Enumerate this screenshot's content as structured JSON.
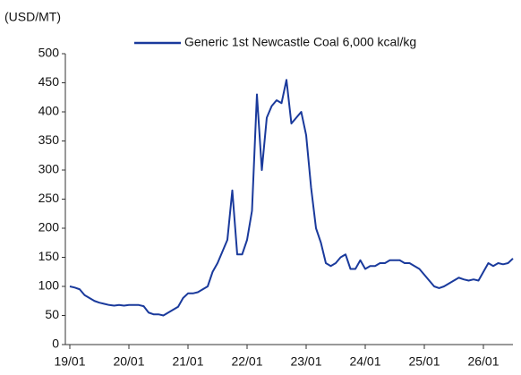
{
  "chart_data": {
    "type": "line",
    "y_label": "(USD/MT)",
    "x": [
      "19/01",
      "19/02",
      "19/03",
      "19/04",
      "19/05",
      "19/06",
      "19/07",
      "19/08",
      "19/09",
      "19/10",
      "19/11",
      "19/12",
      "20/01",
      "20/02",
      "20/03",
      "20/04",
      "20/05",
      "20/06",
      "20/07",
      "20/08",
      "20/09",
      "20/10",
      "20/11",
      "20/12",
      "21/01",
      "21/02",
      "21/03",
      "21/04",
      "21/05",
      "21/06",
      "21/07",
      "21/08",
      "21/09",
      "21/10",
      "21/11",
      "21/12",
      "22/01",
      "22/02",
      "22/03",
      "22/04",
      "22/05",
      "22/06",
      "22/07",
      "22/08",
      "22/09",
      "22/10",
      "22/11",
      "22/12",
      "23/01",
      "23/02",
      "23/03",
      "23/04",
      "23/05",
      "23/06",
      "23/07",
      "23/08",
      "23/09",
      "23/10",
      "23/11",
      "23/12",
      "24/01",
      "24/02",
      "24/03",
      "24/04",
      "24/05",
      "24/06",
      "24/07",
      "24/08",
      "24/09",
      "24/10",
      "24/11",
      "24/12",
      "25/01",
      "25/02",
      "25/03",
      "25/04",
      "25/05",
      "25/06",
      "25/07",
      "25/08",
      "25/09",
      "25/10",
      "25/11",
      "25/12",
      "26/01",
      "26/02",
      "26/03",
      "26/04",
      "26/05",
      "26/06",
      "26/07"
    ],
    "series": [
      {
        "name": "Generic 1st Newcastle Coal 6,000 kcal/kg",
        "color": "#1a3a9c",
        "values": [
          100,
          98,
          95,
          85,
          80,
          75,
          72,
          70,
          68,
          67,
          68,
          67,
          68,
          68,
          68,
          66,
          55,
          52,
          52,
          50,
          55,
          60,
          65,
          80,
          88,
          88,
          90,
          95,
          100,
          125,
          140,
          160,
          180,
          265,
          155,
          155,
          180,
          230,
          430,
          300,
          390,
          410,
          420,
          415,
          455,
          380,
          390,
          400,
          360,
          270,
          200,
          175,
          140,
          135,
          140,
          150,
          155,
          130,
          130,
          145,
          130,
          135,
          135,
          140,
          140,
          145,
          145,
          145,
          140,
          140,
          135,
          130,
          120,
          110,
          100,
          97,
          100,
          105,
          110,
          115,
          112,
          110,
          112,
          110,
          125,
          140,
          135,
          140,
          138,
          140,
          148
        ]
      }
    ],
    "xticks": [
      "19/01",
      "20/01",
      "21/01",
      "22/01",
      "23/01",
      "24/01",
      "25/01",
      "26/01"
    ],
    "ylim": [
      0,
      500
    ],
    "yticks": [
      0,
      50,
      100,
      150,
      200,
      250,
      300,
      350,
      400,
      450,
      500
    ],
    "legend": "top"
  }
}
